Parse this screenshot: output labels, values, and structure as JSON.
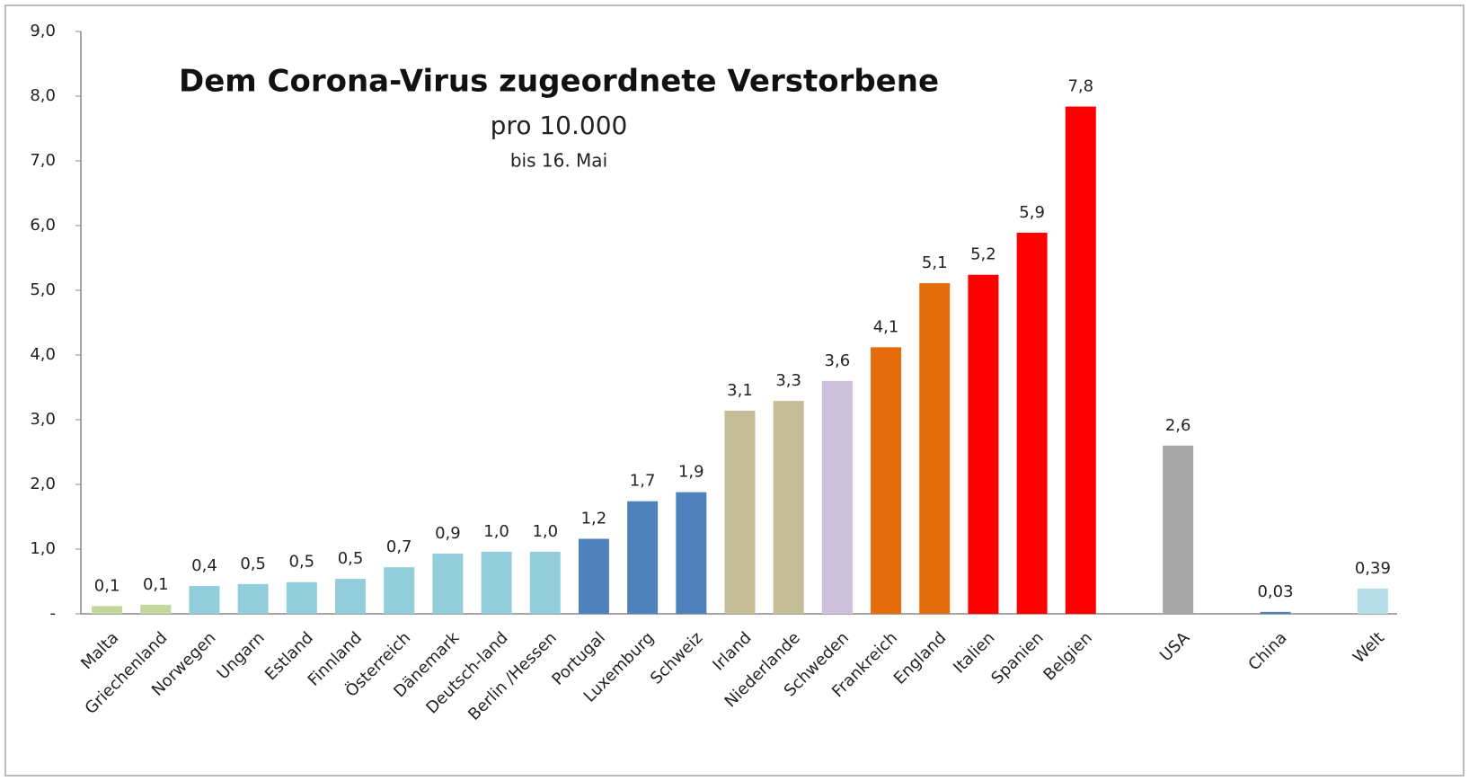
{
  "chart_data": {
    "type": "bar",
    "title": "Dem Corona-Virus zugeordnete Verstorbene",
    "subtitle": "pro 10.000",
    "note": "bis 16. Mai",
    "categories": [
      "Malta",
      "Griechenland",
      "Norwegen",
      "Ungarn",
      "Estland",
      "Finnland",
      "Österreich",
      "Dänemark",
      "Deutsch-land",
      "Berlin /Hessen",
      "Portugal",
      "Luxemburg",
      "Schweiz",
      "Irland",
      "Niederlande",
      "Schweden",
      "Frankreich",
      "England",
      "Italien",
      "Spanien",
      "Belgien",
      null,
      "USA",
      null,
      "China",
      null,
      "Welt"
    ],
    "values": [
      0.12,
      0.14,
      0.43,
      0.46,
      0.49,
      0.54,
      0.72,
      0.93,
      0.96,
      0.96,
      1.16,
      1.74,
      1.88,
      3.14,
      3.29,
      3.6,
      4.12,
      5.11,
      5.24,
      5.89,
      7.84,
      null,
      2.6,
      null,
      0.03,
      null,
      0.39
    ],
    "value_labels": [
      "0,1",
      "0,1",
      "0,4",
      "0,5",
      "0,5",
      "0,5",
      "0,7",
      "0,9",
      "1,0",
      "1,0",
      "1,2",
      "1,7",
      "1,9",
      "3,1",
      "3,3",
      "3,6",
      "4,1",
      "5,1",
      "5,2",
      "5,9",
      "7,8",
      null,
      "2,6",
      null,
      "0,03",
      null,
      "0,39"
    ],
    "colors": [
      "#c3d69b",
      "#c3d69b",
      "#92cddc",
      "#92cddc",
      "#92cddc",
      "#92cddc",
      "#92cddc",
      "#92cddc",
      "#92cddc",
      "#92cddc",
      "#4f81bd",
      "#4f81bd",
      "#4f81bd",
      "#c4bd97",
      "#c4bd97",
      "#ccc0da",
      "#e46c0a",
      "#e46c0a",
      "#ff0000",
      "#ff0000",
      "#ff0000",
      null,
      "#a6a6a6",
      null,
      "#4f81bd",
      null,
      "#b7dee8"
    ],
    "ylim": [
      0,
      9
    ],
    "yticks": [
      {
        "value": 0,
        "label": "-"
      },
      {
        "value": 1,
        "label": "1,0"
      },
      {
        "value": 2,
        "label": "2,0"
      },
      {
        "value": 3,
        "label": "3,0"
      },
      {
        "value": 4,
        "label": "4,0"
      },
      {
        "value": 5,
        "label": "5,0"
      },
      {
        "value": 6,
        "label": "6,0"
      },
      {
        "value": 7,
        "label": "7,0"
      },
      {
        "value": 8,
        "label": "8,0"
      },
      {
        "value": 9,
        "label": "9,0"
      }
    ],
    "grid": false
  }
}
